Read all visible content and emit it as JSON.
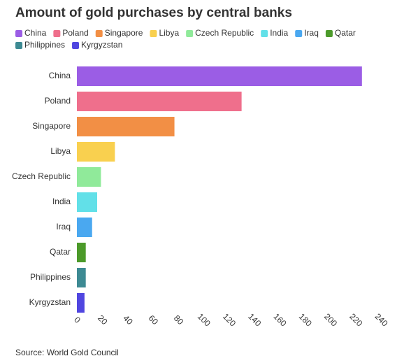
{
  "chart_data": {
    "type": "bar",
    "orientation": "horizontal",
    "title": "Amount of gold purchases by central banks",
    "categories": [
      "China",
      "Poland",
      "Singapore",
      "Libya",
      "Czech Republic",
      "India",
      "Iraq",
      "Qatar",
      "Philippines",
      "Kyrgyzstan"
    ],
    "values": [
      225,
      130,
      77,
      30,
      19,
      16,
      12,
      7,
      7,
      6
    ],
    "colors": [
      "#9b5de5",
      "#ef6f8c",
      "#f28f45",
      "#f9d04f",
      "#90ea9a",
      "#62e0e8",
      "#4aa8f0",
      "#4c9a2a",
      "#3d8a93",
      "#5046e0"
    ],
    "xlim": [
      0,
      240
    ],
    "xticks": [
      0,
      20,
      40,
      60,
      80,
      100,
      120,
      140,
      160,
      180,
      200,
      220,
      240
    ],
    "grid": false,
    "legend": "top",
    "source": "Source: World Gold Council"
  }
}
